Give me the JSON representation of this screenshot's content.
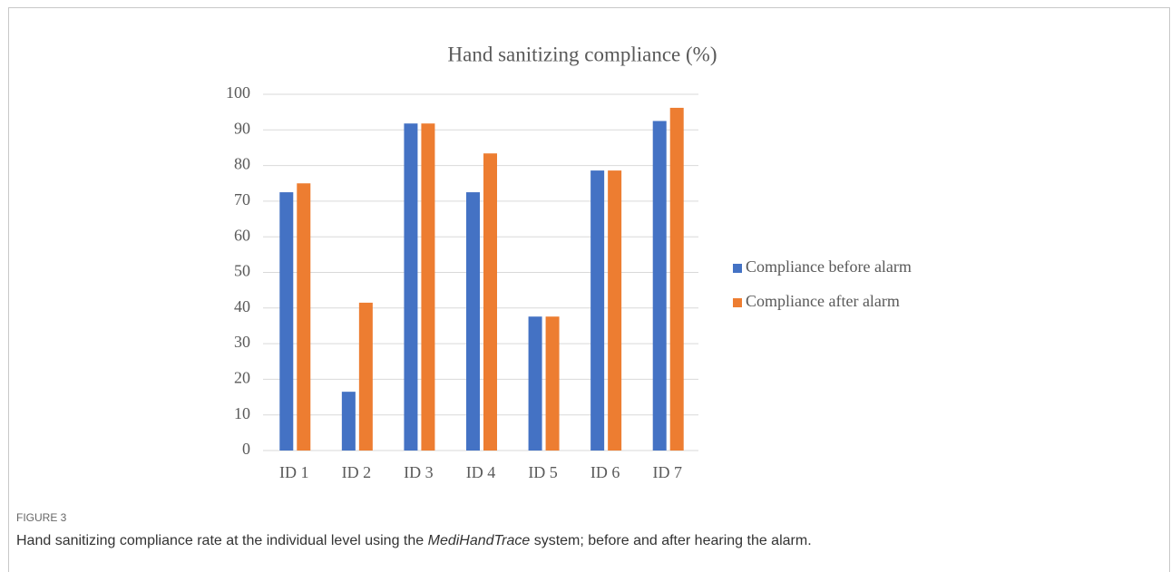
{
  "chart_data": {
    "type": "bar",
    "title": "Hand sanitizing compliance (%)",
    "categories": [
      "ID 1",
      "ID 2",
      "ID 3",
      "ID 4",
      "ID 5",
      "ID 6",
      "ID 7"
    ],
    "series": [
      {
        "name": "Compliance before alarm",
        "color": "#4472c4",
        "values": [
          72.5,
          16.5,
          91.8,
          72.5,
          37.6,
          78.6,
          92.5
        ]
      },
      {
        "name": "Compliance after alarm",
        "color": "#ed7d31",
        "values": [
          75,
          41.5,
          91.8,
          83.4,
          37.6,
          78.6,
          96.2
        ]
      }
    ],
    "ylim": [
      0,
      100
    ],
    "yticks": [
      0,
      10,
      20,
      30,
      40,
      50,
      60,
      70,
      80,
      90,
      100
    ],
    "grid": true,
    "legend": "right"
  },
  "figure_label": "FIGURE 3",
  "caption": {
    "before": "Hand sanitizing compliance rate at the individual level using the ",
    "italic": "MediHandTrace",
    "after": " system; before and after hearing the alarm."
  }
}
